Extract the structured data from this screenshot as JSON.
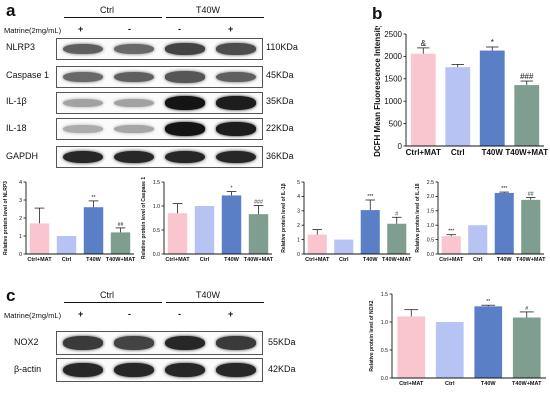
{
  "panel_labels": {
    "a": "a",
    "b": "b",
    "c": "c"
  },
  "panel_a": {
    "groups": [
      "Ctrl",
      "T40W"
    ],
    "treatment_label": "Matrine(2mg/mL)",
    "lane_signs": [
      "+",
      "-",
      "-",
      "+"
    ],
    "blots": [
      {
        "name": "NLRP3",
        "size": "110KDa",
        "intensity": [
          0.55,
          0.5,
          0.7,
          0.65
        ]
      },
      {
        "name": "Caspase 1",
        "size": "45KDa",
        "intensity": [
          0.5,
          0.55,
          0.6,
          0.55
        ]
      },
      {
        "name": "IL-1β",
        "size": "35KDa",
        "intensity": [
          0.2,
          0.2,
          0.95,
          0.9
        ]
      },
      {
        "name": "IL-18",
        "size": "22KDa",
        "intensity": [
          0.15,
          0.18,
          0.95,
          0.9
        ]
      },
      {
        "name": "GAPDH",
        "size": "36KDa",
        "intensity": [
          0.85,
          0.85,
          0.85,
          0.85
        ]
      }
    ]
  },
  "panel_c": {
    "groups": [
      "Ctrl",
      "T40W"
    ],
    "treatment_label": "Matrine(2mg/mL)",
    "lane_signs": [
      "+",
      "-",
      "-",
      "+"
    ],
    "blots": [
      {
        "name": "NOX2",
        "size": "55KDa",
        "intensity": [
          0.75,
          0.7,
          0.85,
          0.75
        ]
      },
      {
        "name": "β-actin",
        "size": "42KDa",
        "intensity": [
          0.85,
          0.85,
          0.85,
          0.85
        ]
      }
    ]
  },
  "colors": {
    "bar": [
      "#f9c6d0",
      "#b7c3f2",
      "#5b7fc7",
      "#7f9e8f"
    ]
  },
  "chart_data": [
    {
      "id": "b",
      "type": "bar",
      "categories": [
        "Ctrl+MAT",
        "Ctrl",
        "T40W",
        "T40W+MAT"
      ],
      "values": [
        2060,
        1760,
        2130,
        1360
      ],
      "errors": [
        130,
        60,
        80,
        90
      ],
      "annotations": [
        "&",
        "",
        "*",
        "###"
      ],
      "ylabel": "DCFH Mean Fluorescence Intensity",
      "ylim": [
        0,
        2500
      ],
      "yticks": [
        0,
        500,
        1000,
        1500,
        2000,
        2500
      ],
      "tick_labels": [
        "0",
        "500",
        "1000",
        "1500",
        "2000",
        "2500"
      ],
      "grid": false
    },
    {
      "id": "nlrp3",
      "type": "bar",
      "categories": [
        "Ctrl+MAT",
        "Ctrl",
        "T40W",
        "T40W+MAT"
      ],
      "values": [
        1.7,
        1.0,
        2.6,
        1.2
      ],
      "errors": [
        0.85,
        0,
        0.35,
        0.25
      ],
      "annotations": [
        "",
        "",
        "**",
        "##"
      ],
      "ylabel": "Relative protein  level of NLRP3",
      "ylim": [
        0,
        4
      ],
      "yticks": [
        0,
        1,
        2,
        3,
        4
      ],
      "tick_labels": [
        "0",
        "1",
        "2",
        "3",
        "4"
      ],
      "grid": false
    },
    {
      "id": "casp1",
      "type": "bar",
      "categories": [
        "Ctrl+MAT",
        "Ctrl",
        "T40W",
        "T40W+MAT"
      ],
      "values": [
        0.85,
        1.0,
        1.22,
        0.83
      ],
      "errors": [
        0.2,
        0,
        0.08,
        0.18
      ],
      "annotations": [
        "",
        "",
        "*",
        "###"
      ],
      "ylabel": "Relative protein  level of Caspase 1",
      "ylim": [
        0,
        1.5
      ],
      "yticks": [
        0,
        0.5,
        1.0,
        1.5
      ],
      "tick_labels": [
        "0.0",
        "0.5",
        "1.0",
        "1.5"
      ],
      "grid": false
    },
    {
      "id": "il1b",
      "type": "bar",
      "categories": [
        "Ctrl+MAT",
        "Ctrl",
        "T40W",
        "T40W+MAT"
      ],
      "values": [
        1.35,
        1.0,
        3.05,
        2.1
      ],
      "errors": [
        0.35,
        0,
        0.7,
        0.45
      ],
      "annotations": [
        "",
        "",
        "***",
        "#"
      ],
      "ylabel": "Relative protein level of IL-1β",
      "ylim": [
        0,
        5
      ],
      "yticks": [
        0,
        1,
        2,
        3,
        4,
        5
      ],
      "tick_labels": [
        "0",
        "1",
        "2",
        "3",
        "4",
        "5"
      ],
      "grid": false
    },
    {
      "id": "il18",
      "type": "bar",
      "categories": [
        "Ctrl+MAT",
        "Ctrl",
        "T40W",
        "T40W+MAT"
      ],
      "values": [
        0.62,
        1.0,
        2.12,
        1.88
      ],
      "errors": [
        0.05,
        0,
        0.03,
        0.08
      ],
      "annotations": [
        "***",
        "",
        "***",
        "##"
      ],
      "ylabel": "Relative protein level of IL-18",
      "ylim": [
        0,
        2.5
      ],
      "yticks": [
        0,
        0.5,
        1.0,
        1.5,
        2.0,
        2.5
      ],
      "tick_labels": [
        "0.0",
        "0.5",
        "1.0",
        "1.5",
        "2.0",
        "2.5"
      ],
      "grid": false
    },
    {
      "id": "nox2",
      "type": "bar",
      "categories": [
        "Ctrl+MAT",
        "Ctrl",
        "T40W",
        "T40W+MAT"
      ],
      "values": [
        1.1,
        1.0,
        1.28,
        1.08
      ],
      "errors": [
        0.12,
        0,
        0.02,
        0.1
      ],
      "annotations": [
        "",
        "",
        "**",
        "#"
      ],
      "ylabel": "Relative protein level of NOX2",
      "ylim": [
        0,
        1.5
      ],
      "yticks": [
        0,
        0.5,
        1.0,
        1.5
      ],
      "tick_labels": [
        "0.0",
        "0.5",
        "1.0",
        "1.5"
      ],
      "grid": false
    }
  ]
}
